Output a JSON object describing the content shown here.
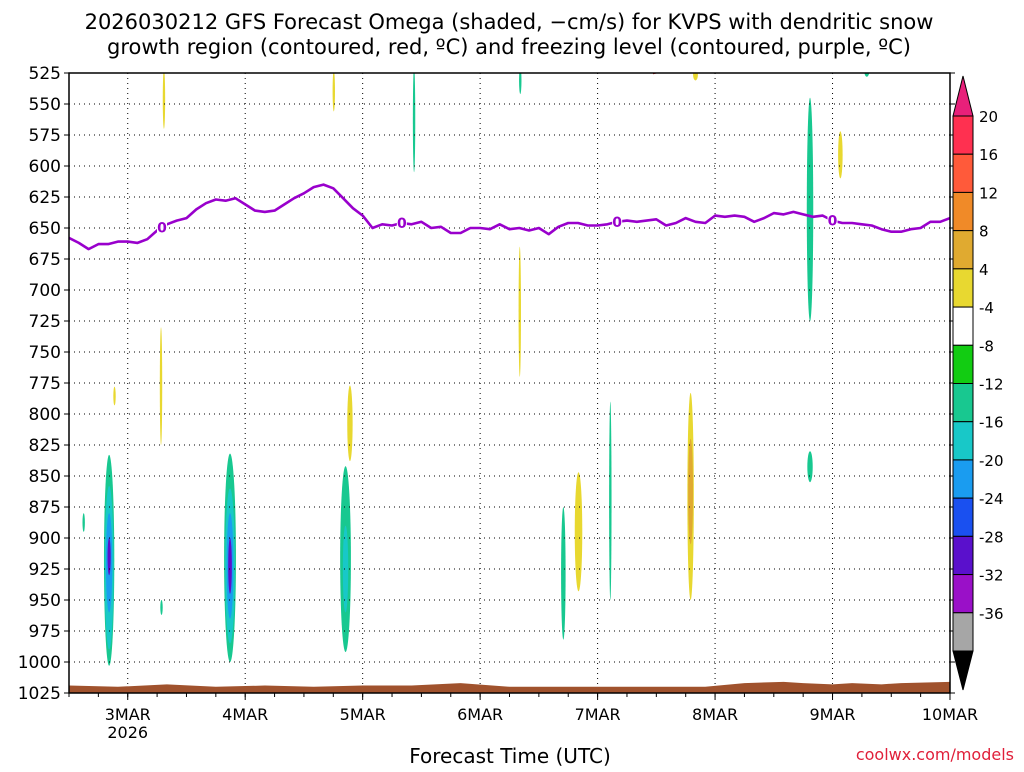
{
  "chart_data": {
    "type": "time-height contour",
    "title_line1": "2026030212 GFS Forecast Omega (shaded, −cm/s) for KVPS with dendritic snow",
    "title_line2": "growth region (contoured, red, ºC) and freezing level (contoured, purple, ºC)",
    "xlabel": "Forecast Time (UTC)",
    "credit": "coolwx.com/models",
    "x_range_hours": [
      0,
      180
    ],
    "y_range_hpa": [
      525,
      1025
    ],
    "y_ticks": [
      "525",
      "550",
      "575",
      "600",
      "625",
      "650",
      "675",
      "700",
      "725",
      "750",
      "775",
      "800",
      "825",
      "850",
      "875",
      "900",
      "925",
      "950",
      "975",
      "1000",
      "1025"
    ],
    "x_ticks": [
      {
        "label": "3MAR",
        "sub": "2026",
        "hour": 12
      },
      {
        "label": "4MAR",
        "sub": "",
        "hour": 36
      },
      {
        "label": "5MAR",
        "sub": "",
        "hour": 60
      },
      {
        "label": "6MAR",
        "sub": "",
        "hour": 84
      },
      {
        "label": "7MAR",
        "sub": "",
        "hour": 108
      },
      {
        "label": "8MAR",
        "sub": "",
        "hour": 132
      },
      {
        "label": "9MAR",
        "sub": "",
        "hour": 156
      },
      {
        "label": "10MAR",
        "sub": "",
        "hour": 180
      }
    ],
    "colorbar": {
      "labels": [
        "20",
        "16",
        "12",
        "8",
        "4",
        "-4",
        "-8",
        "-12",
        "-16",
        "-20",
        "-24",
        "-28",
        "-32",
        "-36"
      ],
      "bins": [
        {
          "color": "#ff3050"
        },
        {
          "color": "#ff5a3a"
        },
        {
          "color": "#f08a28"
        },
        {
          "color": "#e0aa30"
        },
        {
          "color": "#e8d830"
        },
        {
          "color": "#ffffff"
        },
        {
          "color": "#12cc12"
        },
        {
          "color": "#18c890"
        },
        {
          "color": "#18c8c8"
        },
        {
          "color": "#1a9cf0"
        },
        {
          "color": "#1a50f0"
        },
        {
          "color": "#5a10cc"
        },
        {
          "color": "#9a10c8"
        },
        {
          "color": "#a6a6a6"
        }
      ],
      "top_color": "#e8207a",
      "bottom_color": "#000000"
    },
    "freezing_level": {
      "label": "0",
      "color": "#9900cc",
      "points": [
        [
          0,
          658
        ],
        [
          2,
          662
        ],
        [
          4,
          667
        ],
        [
          6,
          663
        ],
        [
          8,
          663
        ],
        [
          10,
          661
        ],
        [
          12,
          661
        ],
        [
          14,
          662
        ],
        [
          16,
          659
        ],
        [
          18,
          652
        ],
        [
          20,
          647
        ],
        [
          22,
          644
        ],
        [
          24,
          642
        ],
        [
          26,
          635
        ],
        [
          28,
          630
        ],
        [
          30,
          627
        ],
        [
          32,
          628
        ],
        [
          34,
          626
        ],
        [
          36,
          631
        ],
        [
          38,
          636
        ],
        [
          40,
          637
        ],
        [
          42,
          636
        ],
        [
          44,
          631
        ],
        [
          46,
          626
        ],
        [
          48,
          622
        ],
        [
          50,
          617
        ],
        [
          52,
          615
        ],
        [
          54,
          618
        ],
        [
          56,
          626
        ],
        [
          58,
          634
        ],
        [
          60,
          640
        ],
        [
          62,
          650
        ],
        [
          64,
          647
        ],
        [
          66,
          648
        ],
        [
          68,
          646
        ],
        [
          70,
          647
        ],
        [
          72,
          645
        ],
        [
          74,
          650
        ],
        [
          76,
          649
        ],
        [
          78,
          654
        ],
        [
          80,
          654
        ],
        [
          82,
          650
        ],
        [
          84,
          650
        ],
        [
          86,
          651
        ],
        [
          88,
          647
        ],
        [
          90,
          651
        ],
        [
          92,
          650
        ],
        [
          94,
          652
        ],
        [
          96,
          650
        ],
        [
          98,
          655
        ],
        [
          100,
          649
        ],
        [
          102,
          646
        ],
        [
          104,
          646
        ],
        [
          106,
          648
        ],
        [
          108,
          648
        ],
        [
          110,
          647
        ],
        [
          112,
          645
        ],
        [
          114,
          644
        ],
        [
          116,
          645
        ],
        [
          118,
          644
        ],
        [
          120,
          643
        ],
        [
          122,
          648
        ],
        [
          124,
          646
        ],
        [
          126,
          642
        ],
        [
          128,
          645
        ],
        [
          130,
          646
        ],
        [
          132,
          640
        ],
        [
          134,
          641
        ],
        [
          136,
          640
        ],
        [
          138,
          641
        ],
        [
          140,
          645
        ],
        [
          142,
          642
        ],
        [
          144,
          638
        ],
        [
          146,
          639
        ],
        [
          148,
          637
        ],
        [
          150,
          639
        ],
        [
          152,
          641
        ],
        [
          154,
          640
        ],
        [
          156,
          644
        ],
        [
          158,
          646
        ],
        [
          160,
          646
        ],
        [
          162,
          647
        ],
        [
          164,
          648
        ],
        [
          166,
          651
        ],
        [
          168,
          653
        ],
        [
          170,
          653
        ],
        [
          172,
          651
        ],
        [
          174,
          650
        ],
        [
          176,
          645
        ],
        [
          178,
          645
        ],
        [
          180,
          642
        ]
      ],
      "label_hours": [
        19,
        68,
        112,
        156
      ]
    },
    "dgz_label": "0",
    "omega_shading": [
      {
        "t": 8.2,
        "p0": 833,
        "p1": 1003,
        "w": 0.96,
        "v": -8
      },
      {
        "t": 8.2,
        "p0": 858,
        "p1": 990,
        "w": 0.82,
        "v": -12
      },
      {
        "t": 8.2,
        "p0": 880,
        "p1": 960,
        "w": 0.58,
        "v": -16
      },
      {
        "t": 8.2,
        "p0": 900,
        "p1": 930,
        "w": 0.3,
        "v": -24
      },
      {
        "t": 32.9,
        "p0": 832,
        "p1": 1000,
        "w": 1.1,
        "v": -8
      },
      {
        "t": 32.9,
        "p0": 860,
        "p1": 985,
        "w": 0.9,
        "v": -12
      },
      {
        "t": 32.9,
        "p0": 880,
        "p1": 965,
        "w": 0.62,
        "v": -16
      },
      {
        "t": 32.9,
        "p0": 900,
        "p1": 945,
        "w": 0.34,
        "v": -24
      },
      {
        "t": 56.5,
        "p0": 842,
        "p1": 992,
        "w": 1.0,
        "v": -8
      },
      {
        "t": 56.5,
        "p0": 890,
        "p1": 960,
        "w": 0.5,
        "v": -12
      },
      {
        "t": 101.0,
        "p0": 875,
        "p1": 982,
        "w": 0.42,
        "v": -8
      },
      {
        "t": 110.6,
        "p0": 790,
        "p1": 950,
        "w": 0.14,
        "v": -8
      },
      {
        "t": 151.4,
        "p0": 545,
        "p1": 725,
        "w": 0.6,
        "v": -8
      },
      {
        "t": 151.4,
        "p0": 830,
        "p1": 855,
        "w": 0.5,
        "v": -8
      },
      {
        "t": 70.5,
        "p0": 520,
        "p1": 605,
        "w": 0.12,
        "v": -8
      },
      {
        "t": 92.2,
        "p0": 520,
        "p1": 542,
        "w": 0.14,
        "v": -8
      },
      {
        "t": 163.0,
        "p0": 520,
        "p1": 528,
        "w": 0.45,
        "v": -8
      },
      {
        "t": 3.0,
        "p0": 880,
        "p1": 895,
        "w": 0.08,
        "v": -8
      },
      {
        "t": 18.9,
        "p0": 950,
        "p1": 962,
        "w": 0.08,
        "v": -8
      },
      {
        "t": 127.0,
        "p0": 783,
        "p1": 950,
        "w": 0.6,
        "v": 4
      },
      {
        "t": 127.0,
        "p0": 820,
        "p1": 905,
        "w": 0.45,
        "v": 8
      },
      {
        "t": 157.6,
        "p0": 572,
        "p1": 610,
        "w": 0.42,
        "v": 4
      },
      {
        "t": 57.4,
        "p0": 777,
        "p1": 838,
        "w": 0.5,
        "v": 4
      },
      {
        "t": 104.1,
        "p0": 847,
        "p1": 943,
        "w": 0.7,
        "v": 4
      },
      {
        "t": 19.4,
        "p0": 522,
        "p1": 570,
        "w": 0.12,
        "v": 4
      },
      {
        "t": 54.1,
        "p0": 523,
        "p1": 556,
        "w": 0.1,
        "v": 4
      },
      {
        "t": 92.1,
        "p0": 665,
        "p1": 770,
        "w": 0.14,
        "v": 4
      },
      {
        "t": 18.8,
        "p0": 730,
        "p1": 825,
        "w": 0.1,
        "v": 4
      },
      {
        "t": 128.0,
        "p0": 522,
        "p1": 531,
        "w": 0.45,
        "v": 4
      },
      {
        "t": 9.3,
        "p0": 778,
        "p1": 793,
        "w": 0.08,
        "v": 4
      }
    ],
    "ground": {
      "color": "#a0522d",
      "top_points": [
        [
          0,
          1019
        ],
        [
          10,
          1020
        ],
        [
          20,
          1018
        ],
        [
          30,
          1020
        ],
        [
          40,
          1019
        ],
        [
          50,
          1020
        ],
        [
          60,
          1019
        ],
        [
          70,
          1019
        ],
        [
          80,
          1017
        ],
        [
          90,
          1020
        ],
        [
          100,
          1020
        ],
        [
          110,
          1020
        ],
        [
          120,
          1020
        ],
        [
          130,
          1020
        ],
        [
          138,
          1017
        ],
        [
          146,
          1016
        ],
        [
          150,
          1017
        ],
        [
          156,
          1018
        ],
        [
          160,
          1017
        ],
        [
          166,
          1018
        ],
        [
          170,
          1017
        ],
        [
          180,
          1016
        ]
      ]
    }
  }
}
